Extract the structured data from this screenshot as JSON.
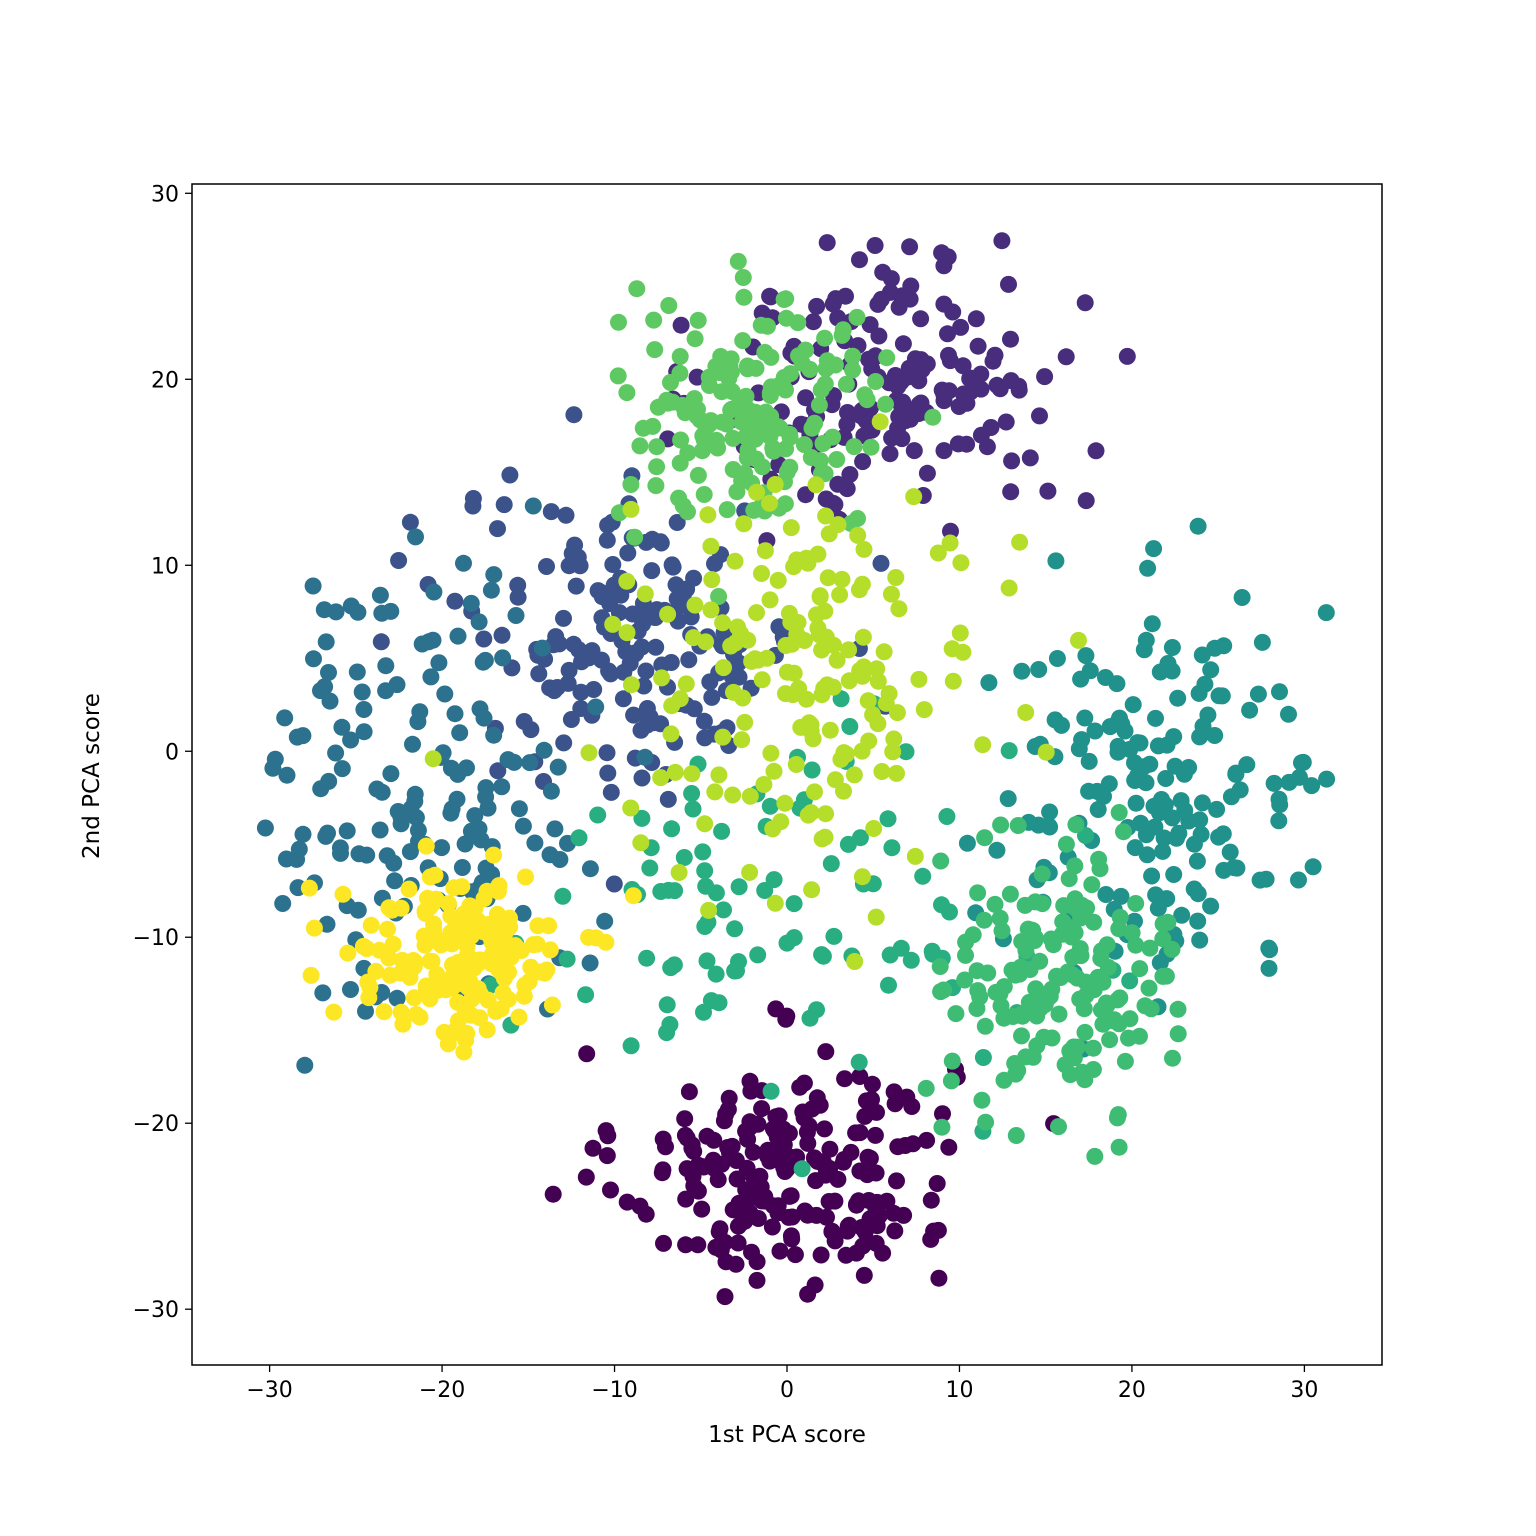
{
  "chart_data": {
    "type": "scatter",
    "title": "",
    "xlabel": "1st PCA score",
    "ylabel": "2nd PCA score",
    "xlim": [
      -34.5,
      34.5
    ],
    "ylim": [
      -33,
      30.5
    ],
    "xticks": [
      -30,
      -20,
      -10,
      0,
      10,
      20,
      30
    ],
    "yticks": [
      -30,
      -20,
      -10,
      0,
      10,
      20,
      30
    ],
    "xtick_labels": [
      "−30",
      "−20",
      "−10",
      "0",
      "10",
      "20",
      "30"
    ],
    "ytick_labels": [
      "−30",
      "−20",
      "−10",
      "0",
      "10",
      "20",
      "30"
    ],
    "grid": false,
    "legend": "none",
    "colormap": "viridis",
    "series": [
      {
        "color": "#440154",
        "center": [
          0,
          -22.5
        ],
        "spread": [
          4.8,
          3.2
        ],
        "count": 230
      },
      {
        "color": "#472d7b",
        "center": [
          6.5,
          20
        ],
        "spread": [
          5.2,
          3.8
        ],
        "count": 180
      },
      {
        "color": "#3b528b",
        "center": [
          -9,
          6
        ],
        "spread": [
          5.0,
          4.0
        ],
        "count": 180
      },
      {
        "color": "#2c728e",
        "center": [
          -21,
          -2
        ],
        "spread": [
          4.5,
          6.0
        ],
        "count": 170
      },
      {
        "color": "#21918c",
        "center": [
          22,
          -2
        ],
        "spread": [
          5.0,
          5.0
        ],
        "count": 180
      },
      {
        "color": "#28ae80",
        "center": [
          -2,
          -9
        ],
        "spread": [
          7.5,
          5.0
        ],
        "count": 100
      },
      {
        "color": "#3fbc73",
        "center": [
          16,
          -12
        ],
        "spread": [
          3.2,
          3.6
        ],
        "count": 170
      },
      {
        "color": "#5ec962",
        "center": [
          -2,
          18
        ],
        "spread": [
          4.0,
          3.2
        ],
        "count": 170
      },
      {
        "color": "#b5de2b",
        "center": [
          1,
          4
        ],
        "spread": [
          5.2,
          5.0
        ],
        "count": 180
      },
      {
        "color": "#fde725",
        "center": [
          -19,
          -11
        ],
        "spread": [
          3.2,
          2.3
        ],
        "count": 170
      }
    ]
  }
}
